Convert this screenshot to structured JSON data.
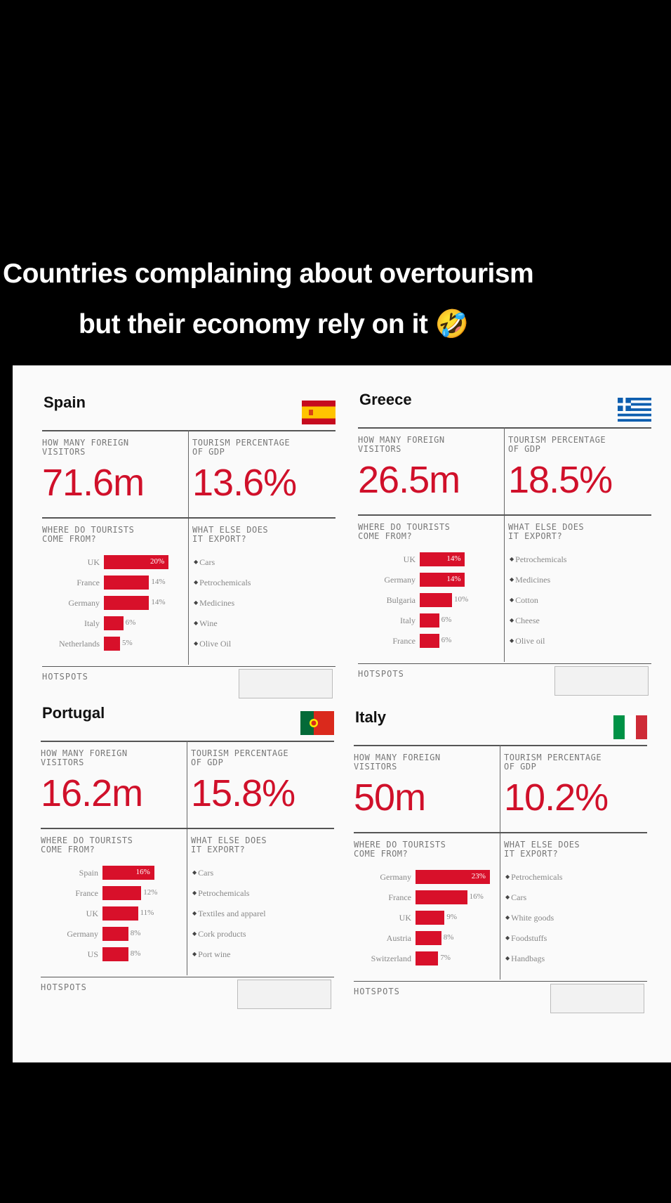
{
  "caption": {
    "line1": "Countries complaining about overtourism",
    "line2": "but their economy rely on it",
    "emoji": "🤣"
  },
  "labels": {
    "visitors": "HOW MANY FOREIGN\nVISITORS",
    "gdp": "TOURISM PERCENTAGE\nOF GDP",
    "where": "WHERE DO TOURISTS\nCOME FROM?",
    "exports": "WHAT ELSE DOES\nIT EXPORT?",
    "hotspots": "HOTSPOTS"
  },
  "chart_data": [
    {
      "type": "bar",
      "country": "Spain",
      "flag": "spain",
      "visitors": "71.6m",
      "gdp_share": "13.6%",
      "categories": [
        "UK",
        "France",
        "Germany",
        "Italy",
        "Netherlands"
      ],
      "values": [
        20,
        14,
        14,
        6,
        5
      ],
      "value_labels": [
        "20%",
        "14%",
        "14%",
        "6%",
        "5%"
      ],
      "exports": [
        "Cars",
        "Petrochemicals",
        "Medicines",
        "Wine",
        "Olive Oil"
      ]
    },
    {
      "type": "bar",
      "country": "Greece",
      "flag": "greece",
      "visitors": "26.5m",
      "gdp_share": "18.5%",
      "categories": [
        "UK",
        "Germany",
        "Bulgaria",
        "Italy",
        "France"
      ],
      "values": [
        14,
        14,
        10,
        6,
        6
      ],
      "value_labels": [
        "14%",
        "14%",
        "10%",
        "6%",
        "6%"
      ],
      "exports": [
        "Petrochemicals",
        "Medicines",
        "Cotton",
        "Cheese",
        "Olive oil"
      ]
    },
    {
      "type": "bar",
      "country": "Portugal",
      "flag": "portugal",
      "visitors": "16.2m",
      "gdp_share": "15.8%",
      "categories": [
        "Spain",
        "France",
        "UK",
        "Germany",
        "US"
      ],
      "values": [
        16,
        12,
        11,
        8,
        8
      ],
      "value_labels": [
        "16%",
        "12%",
        "11%",
        "8%",
        "8%"
      ],
      "exports": [
        "Cars",
        "Petrochemicals",
        "Textiles and apparel",
        "Cork products",
        "Port wine"
      ]
    },
    {
      "type": "bar",
      "country": "Italy",
      "flag": "italy",
      "visitors": "50m",
      "gdp_share": "10.2%",
      "categories": [
        "Germany",
        "France",
        "UK",
        "Austria",
        "Switzerland"
      ],
      "values": [
        23,
        16,
        9,
        8,
        7
      ],
      "value_labels": [
        "23%",
        "16%",
        "9%",
        "8%",
        "7%"
      ],
      "exports": [
        "Petrochemicals",
        "Cars",
        "White goods",
        "Foodstuffs",
        "Handbags"
      ]
    }
  ],
  "colors": {
    "accent": "#d0102a",
    "bar": "#d8102a"
  }
}
